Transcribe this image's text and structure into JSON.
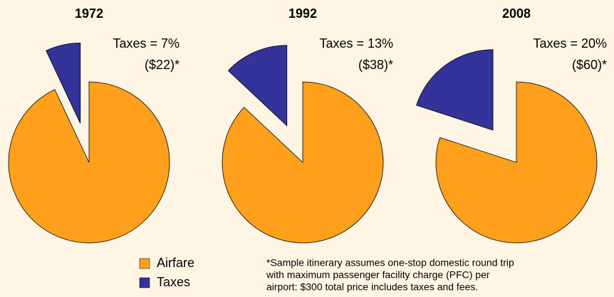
{
  "chart_data": [
    {
      "type": "pie",
      "title": "1972",
      "categories": [
        "Airfare",
        "Taxes"
      ],
      "values": [
        93,
        7
      ],
      "value_labels": [
        null,
        "Taxes = 7%"
      ],
      "annotation": "($22)*",
      "colors": [
        "#FFA01C",
        "#333399"
      ],
      "explode": [
        false,
        true
      ]
    },
    {
      "type": "pie",
      "title": "1992",
      "categories": [
        "Airfare",
        "Taxes"
      ],
      "values": [
        87,
        13
      ],
      "value_labels": [
        null,
        "Taxes = 13%"
      ],
      "annotation": "($38)*",
      "colors": [
        "#FFA01C",
        "#333399"
      ],
      "explode": [
        false,
        true
      ]
    },
    {
      "type": "pie",
      "title": "2008",
      "categories": [
        "Airfare",
        "Taxes"
      ],
      "values": [
        80,
        20
      ],
      "value_labels": [
        null,
        "Taxes = 20%"
      ],
      "annotation": "($60)*",
      "colors": [
        "#FFA01C",
        "#333399"
      ],
      "explode": [
        false,
        true
      ]
    }
  ],
  "footnote": [
    "*Sample itinerary assumes one-stop domestic round trip",
    "with maximum passenger facility charge (PFC) per",
    "airport: $300 total price includes taxes and fees."
  ]
}
